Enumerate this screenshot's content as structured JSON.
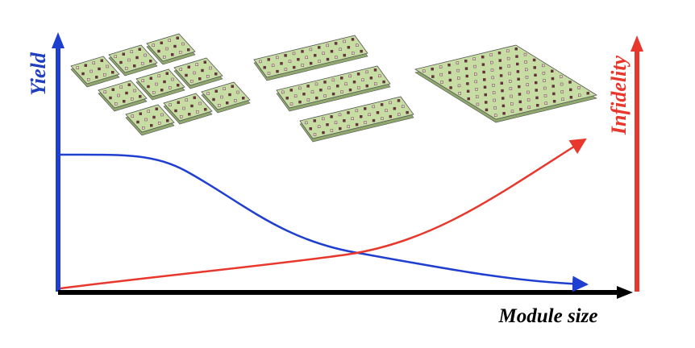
{
  "y_axis_label": "Yield",
  "y2_axis_label": "Infidelity",
  "x_axis_label": "Module size"
}
